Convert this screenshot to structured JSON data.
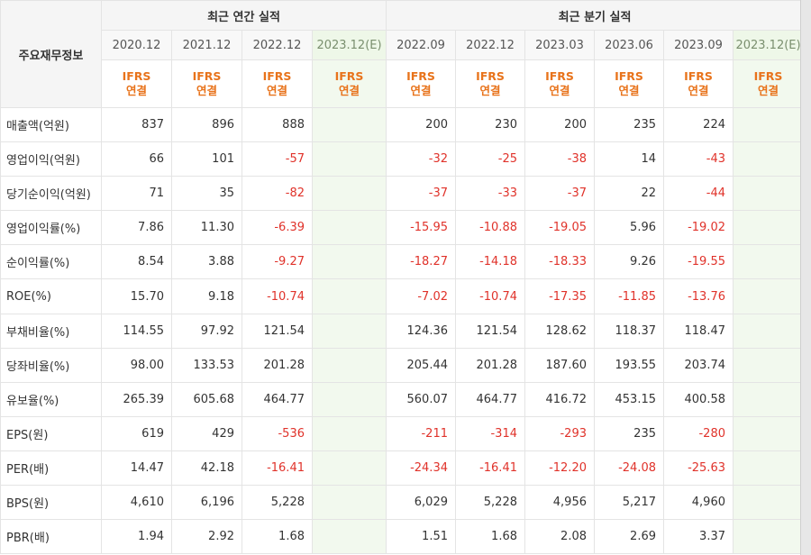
{
  "header": {
    "label_title": "주요재무정보",
    "annual_title": "최근 연간 실적",
    "quarter_title": "최근 분기 실적",
    "annual_periods": [
      "2020.12",
      "2021.12",
      "2022.12",
      "2023.12(E)"
    ],
    "quarter_periods": [
      "2022.09",
      "2022.12",
      "2023.03",
      "2023.06",
      "2023.09",
      "2023.12(E)"
    ],
    "ifrs_line1": "IFRS",
    "ifrs_line2": "연결"
  },
  "colors": {
    "negative": "#e0322a",
    "ifrs": "#e8731b",
    "estimate_bg": "#f2f9ee"
  },
  "rows": [
    {
      "label": "매출액(억원)",
      "annual": [
        "837",
        "896",
        "888",
        ""
      ],
      "quarter": [
        "200",
        "230",
        "200",
        "235",
        "224",
        ""
      ]
    },
    {
      "label": "영업이익(억원)",
      "annual": [
        "66",
        "101",
        "-57",
        ""
      ],
      "quarter": [
        "-32",
        "-25",
        "-38",
        "14",
        "-43",
        ""
      ]
    },
    {
      "label": "당기순이익(억원)",
      "annual": [
        "71",
        "35",
        "-82",
        ""
      ],
      "quarter": [
        "-37",
        "-33",
        "-37",
        "22",
        "-44",
        ""
      ]
    },
    {
      "label": "영업이익률(%)",
      "annual": [
        "7.86",
        "11.30",
        "-6.39",
        ""
      ],
      "quarter": [
        "-15.95",
        "-10.88",
        "-19.05",
        "5.96",
        "-19.02",
        ""
      ]
    },
    {
      "label": "순이익률(%)",
      "annual": [
        "8.54",
        "3.88",
        "-9.27",
        ""
      ],
      "quarter": [
        "-18.27",
        "-14.18",
        "-18.33",
        "9.26",
        "-19.55",
        ""
      ]
    },
    {
      "label": "ROE(%)",
      "annual": [
        "15.70",
        "9.18",
        "-10.74",
        ""
      ],
      "quarter": [
        "-7.02",
        "-10.74",
        "-17.35",
        "-11.85",
        "-13.76",
        ""
      ]
    },
    {
      "label": "부채비율(%)",
      "annual": [
        "114.55",
        "97.92",
        "121.54",
        ""
      ],
      "quarter": [
        "124.36",
        "121.54",
        "128.62",
        "118.37",
        "118.47",
        ""
      ]
    },
    {
      "label": "당좌비율(%)",
      "annual": [
        "98.00",
        "133.53",
        "201.28",
        ""
      ],
      "quarter": [
        "205.44",
        "201.28",
        "187.60",
        "193.55",
        "203.74",
        ""
      ]
    },
    {
      "label": "유보율(%)",
      "annual": [
        "265.39",
        "605.68",
        "464.77",
        ""
      ],
      "quarter": [
        "560.07",
        "464.77",
        "416.72",
        "453.15",
        "400.58",
        ""
      ]
    },
    {
      "label": "EPS(원)",
      "annual": [
        "619",
        "429",
        "-536",
        ""
      ],
      "quarter": [
        "-211",
        "-314",
        "-293",
        "235",
        "-280",
        ""
      ]
    },
    {
      "label": "PER(배)",
      "annual": [
        "14.47",
        "42.18",
        "-16.41",
        ""
      ],
      "quarter": [
        "-24.34",
        "-16.41",
        "-12.20",
        "-24.08",
        "-25.63",
        ""
      ]
    },
    {
      "label": "BPS(원)",
      "annual": [
        "4,610",
        "6,196",
        "5,228",
        ""
      ],
      "quarter": [
        "6,029",
        "5,228",
        "4,956",
        "5,217",
        "4,960",
        ""
      ]
    },
    {
      "label": "PBR(배)",
      "annual": [
        "1.94",
        "2.92",
        "1.68",
        ""
      ],
      "quarter": [
        "1.51",
        "1.68",
        "2.08",
        "2.69",
        "3.37",
        ""
      ]
    }
  ]
}
